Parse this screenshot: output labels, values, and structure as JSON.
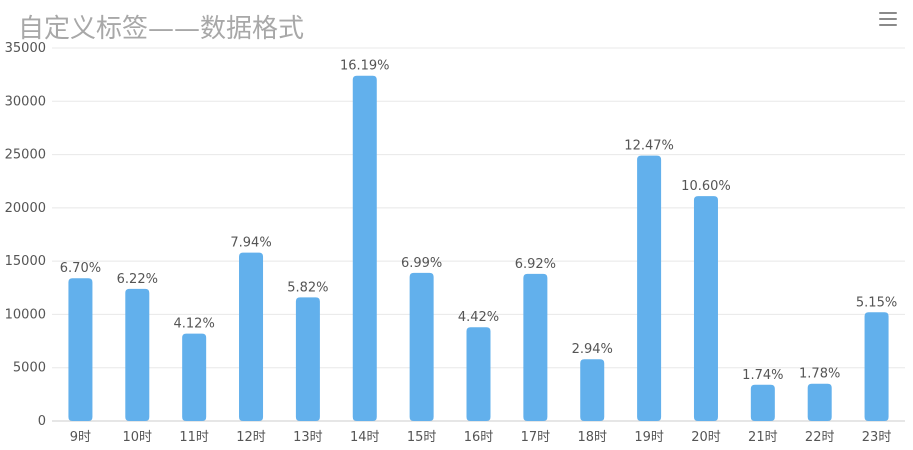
{
  "title": "自定义标签——数据格式",
  "icons": {
    "menu": "hamburger-menu-icon"
  },
  "colors": {
    "bar": "#62b0ec",
    "grid": "#e8e8e8",
    "axis": "#cccccc",
    "text": "#555555",
    "title": "#a8a8a8"
  },
  "chart_data": {
    "type": "bar",
    "title": "自定义标签——数据格式",
    "categories": [
      "9时",
      "10时",
      "11时",
      "12时",
      "13时",
      "14时",
      "15时",
      "16时",
      "17时",
      "18时",
      "19时",
      "20时",
      "21时",
      "22时",
      "23时"
    ],
    "values": [
      13400,
      12400,
      8200,
      15800,
      11600,
      32400,
      13900,
      8800,
      13800,
      5800,
      24900,
      21100,
      3400,
      3500,
      10200
    ],
    "data_labels": [
      "6.70%",
      "6.22%",
      "4.12%",
      "7.94%",
      "5.82%",
      "16.19%",
      "6.99%",
      "4.42%",
      "6.92%",
      "2.94%",
      "12.47%",
      "10.60%",
      "1.74%",
      "1.78%",
      "5.15%"
    ],
    "yticks": [
      "0",
      "5000",
      "10000",
      "15000",
      "20000",
      "25000",
      "30000",
      "35000"
    ],
    "ylim": [
      0,
      35000
    ],
    "xlabel": "",
    "ylabel": "",
    "grid": true,
    "legend": "none"
  }
}
